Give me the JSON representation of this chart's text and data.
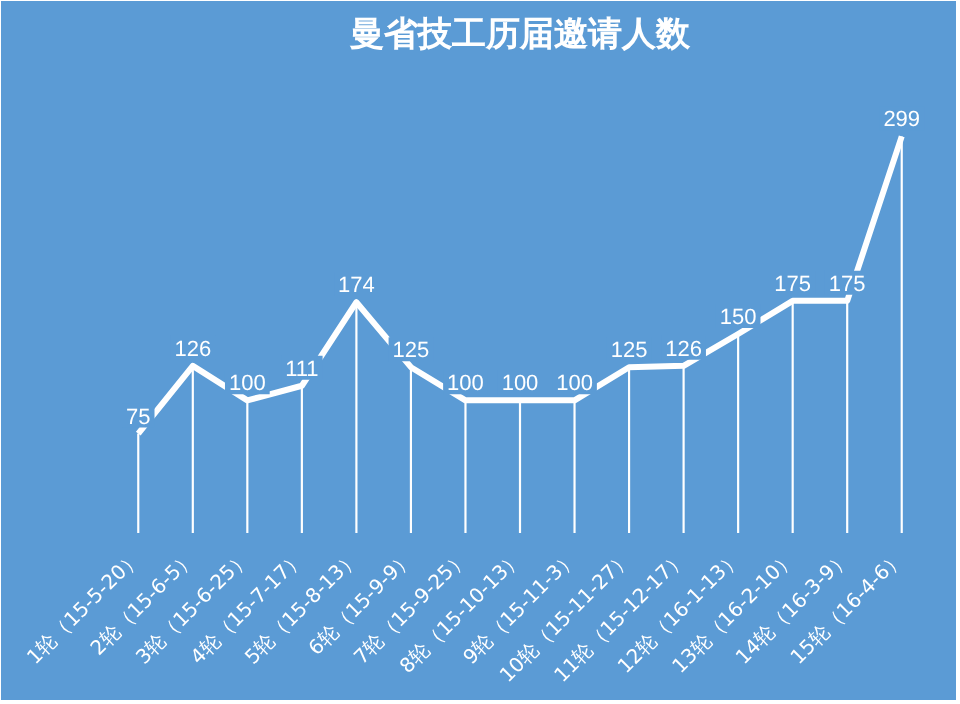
{
  "chart_data": {
    "type": "line",
    "title": "曼省技工历届邀请人数",
    "categories": [
      "1轮（15-5-20）",
      "2轮（15-6-5）",
      "3轮（15-6-25）",
      "4轮（15-7-17）",
      "5轮（15-8-13）",
      "6轮（15-9-9）",
      "7轮（15-9-25）",
      "8轮（15-10-13）",
      "9轮（15-11-3）",
      "10轮（15-11-27）",
      "11轮（15-12-17）",
      "12轮（16-1-13）",
      "13轮（16-2-10）",
      "14轮（16-3-9）",
      "15轮（16-4-6）"
    ],
    "series": [
      {
        "type": "bar",
        "color": "#ffffff",
        "values": [
          75,
          126,
          100,
          111,
          174,
          125,
          100,
          100,
          100,
          125,
          126,
          150,
          175,
          175,
          299
        ],
        "value_labels": [
          "75",
          "126",
          "100",
          "111",
          "174",
          "125",
          "100",
          "100",
          "100",
          "125",
          "126",
          "150",
          "175",
          "175",
          "299"
        ]
      },
      {
        "color": "#ffffff",
        "values": [
          75,
          126,
          100,
          111,
          174,
          125,
          100,
          100,
          100,
          125,
          126,
          150,
          175,
          175,
          299
        ]
      }
    ],
    "grid": false,
    "marker": "none",
    "line_style": "solid"
  }
}
